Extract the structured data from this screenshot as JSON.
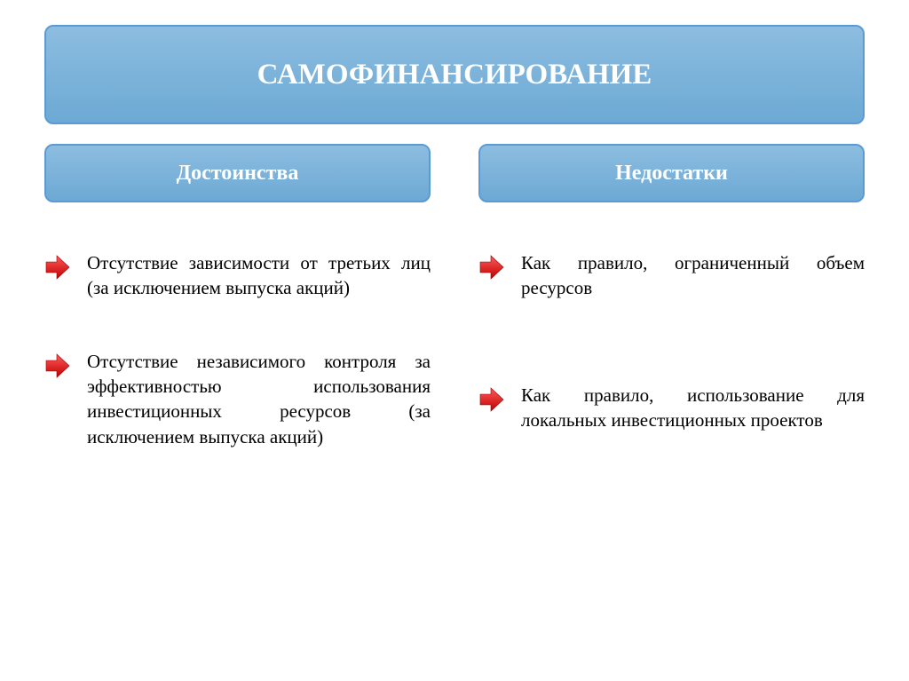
{
  "title": {
    "text": "САМОФИНАНСИРОВАНИЕ",
    "fontsize": 33,
    "bg_gradient_top": "#8dbde0",
    "bg_gradient_bottom": "#6ca9d4",
    "border_color": "#5b9bd5"
  },
  "subtitle_style": {
    "fontsize": 24,
    "bg_gradient_top": "#8dbde0",
    "bg_gradient_bottom": "#6ca9d4",
    "border_color": "#5b9bd5"
  },
  "item_text_fontsize": 21,
  "arrow": {
    "fill_light": "#ff5b5b",
    "fill_dark": "#c00000",
    "width": 30,
    "height": 30
  },
  "columns": {
    "left": {
      "heading": "Достоинства",
      "items": [
        "Отсутствие зависимости от третьих лиц (за исключением выпуска акций)",
        "Отсутствие независимого контроля за эффективностью использования инвестиционных ресурсов (за исключением выпуска акций)"
      ]
    },
    "right": {
      "heading": "Недостатки",
      "items": [
        "Как правило, ограниченный объем ресурсов",
        "Как правило, использование для локальных инвестиционных проектов"
      ]
    }
  }
}
